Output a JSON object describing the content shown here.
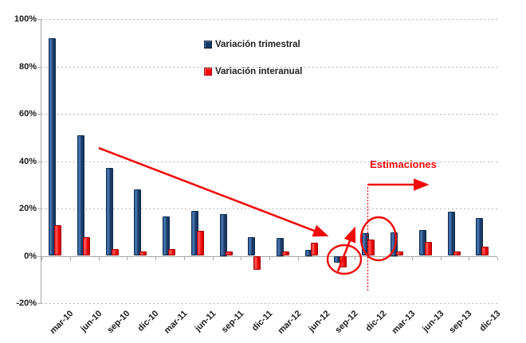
{
  "chart_data": {
    "type": "bar",
    "title": "",
    "categories": [
      "mar-10",
      "jun-10",
      "sep-10",
      "dic-10",
      "mar-11",
      "jun-11",
      "sep-11",
      "dic-11",
      "mar-12",
      "jun-12",
      "sep-12",
      "dic-12",
      "mar-13",
      "jun-13",
      "sep-13",
      "dic-13"
    ],
    "series": [
      {
        "name": "Variación trimestral",
        "color": "#17375E",
        "values": [
          92,
          51,
          37,
          28,
          16.5,
          19,
          17.5,
          8,
          7.5,
          2.5,
          -3,
          9.5,
          10,
          11,
          18.5,
          16
        ]
      },
      {
        "name": "Variación interanual",
        "color": "#FF0000",
        "values": [
          13,
          8,
          3,
          2,
          3,
          10.5,
          2,
          -6,
          2,
          5.5,
          -5,
          7,
          2,
          6,
          2,
          4
        ]
      }
    ],
    "ylabel": "",
    "xlabel": "",
    "ylim": [
      -20,
      100
    ],
    "ytick_step": 20,
    "ytick_labels": [
      "100%",
      "80%",
      "60%",
      "40%",
      "20%",
      "0%",
      "-20%"
    ],
    "grid": "horizontal-dashed",
    "legend_position": "inside-top-center",
    "annotations": {
      "estimaciones_label": "Estimaciones",
      "annotation_color": "#FF0000",
      "notes": [
        "downward trend arrow from near jun-10 40% level to sep-12 bars",
        "circle around sep-12 negative bars",
        "arrow from sep-12 circle to dic-12 circle",
        "circle around dic-12 bars",
        "vertical dotted line at start of estimates with right arrow under Estimaciones label"
      ]
    }
  }
}
